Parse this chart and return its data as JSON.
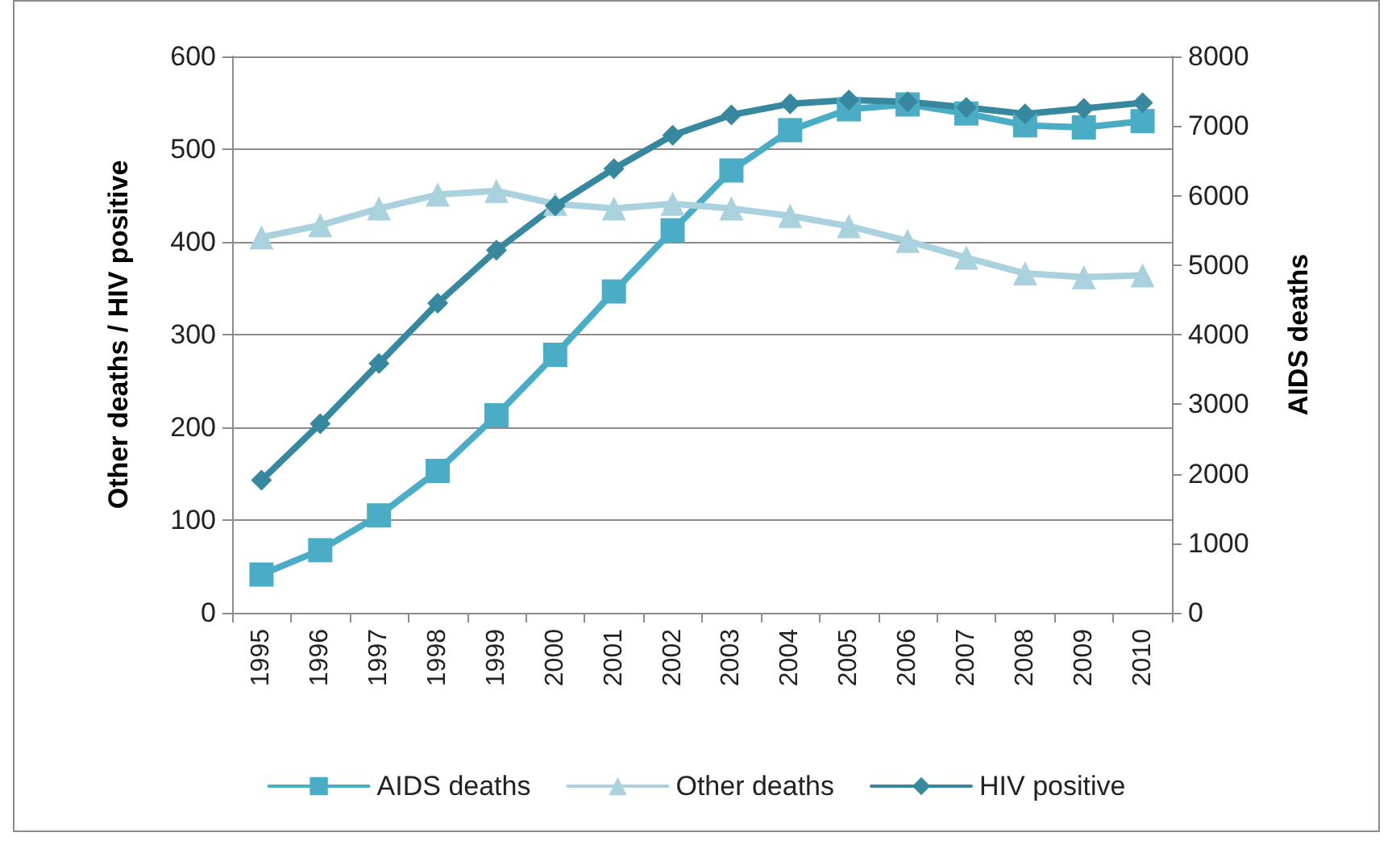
{
  "chart_data": {
    "type": "line",
    "categories": [
      "1995",
      "1996",
      "1997",
      "1998",
      "1999",
      "2000",
      "2001",
      "2002",
      "2003",
      "2004",
      "2005",
      "2006",
      "2007",
      "2008",
      "2009",
      "2010"
    ],
    "ylabel": "Other deaths / HIV positive",
    "y2label": "AIDS deaths",
    "ylim": [
      0,
      600
    ],
    "yticks": [
      0,
      100,
      200,
      300,
      400,
      500,
      600
    ],
    "y2lim": [
      0,
      8000
    ],
    "y2ticks": [
      0,
      1000,
      2000,
      3000,
      4000,
      5000,
      6000,
      7000,
      8000
    ],
    "grid": "y",
    "legend": "bottom",
    "line_style": "solid",
    "series": [
      {
        "name": "AIDS deaths",
        "color": "#4bacc6",
        "axis": "y2",
        "marker": "square",
        "values": [
          550,
          900,
          1400,
          2040,
          2840,
          3710,
          4620,
          5500,
          6360,
          6940,
          7240,
          7310,
          7180,
          7010,
          6980,
          7070
        ]
      },
      {
        "name": "Other deaths",
        "color": "#a9d1de",
        "marker": "triangle",
        "values": [
          405,
          418,
          436,
          451,
          455,
          441,
          436,
          441,
          436,
          428,
          417,
          401,
          383,
          366,
          362,
          364
        ]
      },
      {
        "name": "HIV positive",
        "color": "#37889f",
        "marker": "diamond",
        "values": [
          143,
          204,
          269,
          334,
          391,
          439,
          479,
          515,
          537,
          549,
          553,
          551,
          545,
          538,
          544,
          550
        ]
      }
    ]
  }
}
